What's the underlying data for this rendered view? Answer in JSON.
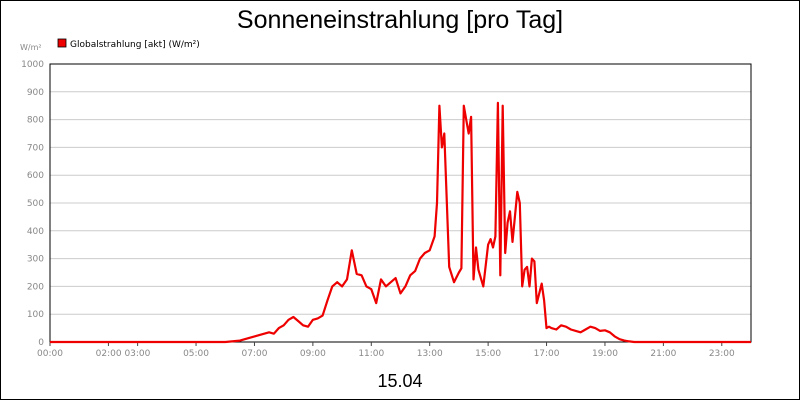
{
  "chart_data": {
    "type": "line",
    "title": "Sonneneinstrahlung [pro Tag]",
    "xlabel": "15.04",
    "ylabel": "W/m²",
    "ylim": [
      0,
      1000
    ],
    "xlim": [
      "00:00",
      "24:00"
    ],
    "x_unit": "hours",
    "y_ticks": [
      0,
      100,
      200,
      300,
      400,
      500,
      600,
      700,
      800,
      900,
      1000
    ],
    "x_tick_labels": [
      "00:00",
      "02:00 03:00",
      "05:00",
      "07:00",
      "09:00",
      "11:00",
      "13:00",
      "15:00",
      "17:00",
      "19:00",
      "21:00",
      "23:00"
    ],
    "grid": true,
    "legend_position": "top-left",
    "colors": {
      "series": "#ee0000",
      "grid": "#cccccc",
      "axis": "#000000",
      "ticks": "#888888"
    },
    "series": [
      {
        "name": "Globalstrahlung [akt] (W/m²)",
        "x": [
          "00:00",
          "06:00",
          "06:30",
          "06:50",
          "07:00",
          "07:10",
          "07:20",
          "07:30",
          "07:40",
          "07:50",
          "08:00",
          "08:10",
          "08:20",
          "08:30",
          "08:40",
          "08:50",
          "09:00",
          "09:10",
          "09:20",
          "09:30",
          "09:40",
          "09:50",
          "10:00",
          "10:10",
          "10:20",
          "10:30",
          "10:40",
          "10:50",
          "11:00",
          "11:10",
          "11:20",
          "11:30",
          "11:40",
          "11:50",
          "12:00",
          "12:10",
          "12:20",
          "12:30",
          "12:40",
          "12:50",
          "13:00",
          "13:10",
          "13:15",
          "13:20",
          "13:25",
          "13:30",
          "13:40",
          "13:50",
          "14:00",
          "14:05",
          "14:10",
          "14:15",
          "14:20",
          "14:25",
          "14:30",
          "14:35",
          "14:40",
          "14:50",
          "15:00",
          "15:05",
          "15:10",
          "15:15",
          "15:20",
          "15:25",
          "15:30",
          "15:35",
          "15:40",
          "15:45",
          "15:50",
          "16:00",
          "16:05",
          "16:10",
          "16:15",
          "16:20",
          "16:25",
          "16:30",
          "16:35",
          "16:40",
          "16:50",
          "16:55",
          "17:00",
          "17:05",
          "17:10",
          "17:20",
          "17:30",
          "17:40",
          "17:50",
          "18:00",
          "18:10",
          "18:20",
          "18:30",
          "18:40",
          "18:50",
          "19:00",
          "19:10",
          "19:20",
          "19:30",
          "19:40",
          "19:50",
          "20:00",
          "20:10",
          "20:30",
          "21:00",
          "24:00"
        ],
        "values": [
          0,
          0,
          5,
          15,
          20,
          25,
          30,
          35,
          30,
          50,
          60,
          80,
          90,
          75,
          60,
          55,
          80,
          85,
          95,
          150,
          200,
          215,
          200,
          225,
          330,
          245,
          240,
          200,
          190,
          140,
          225,
          200,
          215,
          230,
          175,
          200,
          240,
          255,
          300,
          320,
          330,
          380,
          500,
          850,
          700,
          750,
          270,
          215,
          250,
          265,
          850,
          800,
          750,
          810,
          225,
          340,
          260,
          200,
          350,
          370,
          340,
          380,
          860,
          240,
          850,
          320,
          430,
          470,
          360,
          540,
          500,
          200,
          260,
          270,
          200,
          300,
          290,
          140,
          210,
          150,
          50,
          55,
          50,
          45,
          60,
          55,
          45,
          40,
          35,
          45,
          55,
          50,
          40,
          42,
          35,
          20,
          10,
          5,
          2,
          0,
          0,
          0,
          0,
          0
        ]
      }
    ]
  }
}
